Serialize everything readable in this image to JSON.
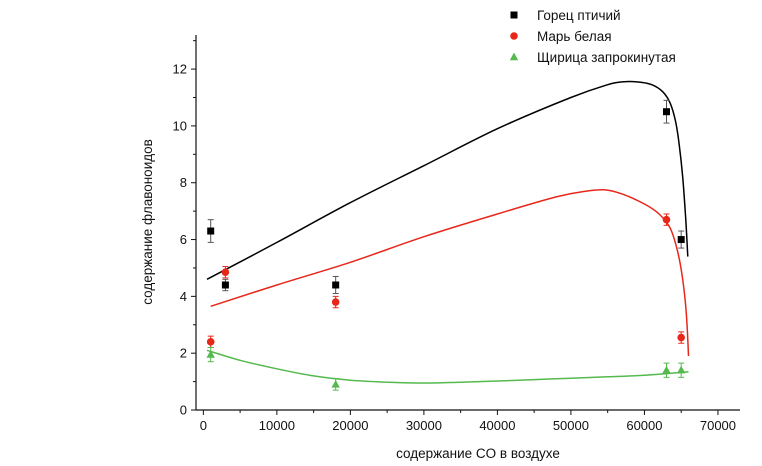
{
  "chart_data": {
    "type": "scatter",
    "xlabel": "содержание CO в воздухе",
    "ylabel": "содержание флавоноидов",
    "xlim": [
      -1000,
      73000
    ],
    "ylim": [
      0,
      13.2
    ],
    "x_ticks": [
      0,
      10000,
      20000,
      30000,
      40000,
      50000,
      60000,
      70000
    ],
    "x_tick_labels": [
      "0",
      "10000",
      "20000",
      "30000",
      "40000",
      "50000",
      "60000",
      "70000"
    ],
    "y_ticks": [
      0,
      2,
      4,
      6,
      8,
      10,
      12
    ],
    "y_tick_labels": [
      "0",
      "2",
      "4",
      "6",
      "8",
      "10",
      "12"
    ],
    "grid": false,
    "legend_position": "top-right",
    "series": [
      {
        "name": "Горец птичий",
        "color": "#000000",
        "marker": "square",
        "points": [
          {
            "x": 1000,
            "y": 6.3,
            "err": 0.4
          },
          {
            "x": 3000,
            "y": 4.4,
            "err": 0.2
          },
          {
            "x": 18000,
            "y": 4.4,
            "err": 0.3
          },
          {
            "x": 63000,
            "y": 10.5,
            "err": 0.4
          },
          {
            "x": 65000,
            "y": 6.0,
            "err": 0.3
          }
        ],
        "fit": {
          "x": [
            500,
            10000,
            20000,
            30000,
            40000,
            50000,
            55000,
            57000,
            59000,
            61000,
            62500,
            63500,
            64200,
            64700,
            65200,
            65600,
            65900
          ],
          "y": [
            4.6,
            5.9,
            7.3,
            8.6,
            9.9,
            11.0,
            11.45,
            11.55,
            11.55,
            11.45,
            11.2,
            10.8,
            10.2,
            9.4,
            8.2,
            6.8,
            5.4
          ]
        }
      },
      {
        "name": "Марь белая",
        "color": "#e8271b",
        "marker": "circle",
        "points": [
          {
            "x": 1000,
            "y": 2.4,
            "err": 0.2
          },
          {
            "x": 3000,
            "y": 4.85,
            "err": 0.2
          },
          {
            "x": 18000,
            "y": 3.8,
            "err": 0.2
          },
          {
            "x": 63000,
            "y": 6.7,
            "err": 0.2
          },
          {
            "x": 65000,
            "y": 2.55,
            "err": 0.2
          }
        ],
        "fit": {
          "x": [
            1000,
            10000,
            20000,
            30000,
            40000,
            48000,
            52000,
            54500,
            57000,
            60000,
            62000,
            63500,
            64500,
            65200,
            65700,
            66000
          ],
          "y": [
            3.65,
            4.4,
            5.2,
            6.1,
            6.9,
            7.5,
            7.7,
            7.75,
            7.6,
            7.25,
            6.9,
            6.4,
            5.6,
            4.6,
            3.4,
            1.9
          ]
        }
      },
      {
        "name": "Щирица запрокинутая",
        "color": "#55b94e",
        "marker": "triangle",
        "points": [
          {
            "x": 1000,
            "y": 1.95,
            "err": 0.25
          },
          {
            "x": 18000,
            "y": 0.9,
            "err": 0.2
          },
          {
            "x": 63000,
            "y": 1.4,
            "err": 0.25
          },
          {
            "x": 65000,
            "y": 1.4,
            "err": 0.25
          }
        ],
        "fit": {
          "x": [
            500,
            5000,
            10000,
            15000,
            20000,
            25000,
            30000,
            35000,
            40000,
            45000,
            50000,
            55000,
            60000,
            65000,
            66000
          ],
          "y": [
            2.1,
            1.75,
            1.45,
            1.2,
            1.05,
            0.98,
            0.95,
            0.98,
            1.02,
            1.07,
            1.12,
            1.17,
            1.22,
            1.32,
            1.35
          ]
        }
      }
    ]
  }
}
